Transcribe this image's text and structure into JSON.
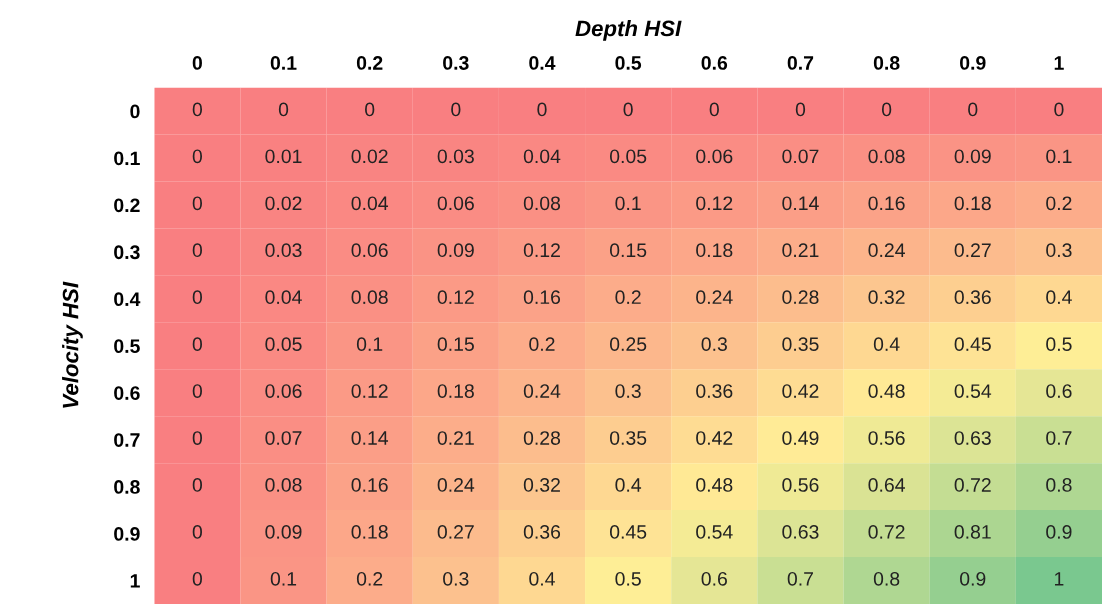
{
  "chart_data": {
    "type": "heatmap",
    "xlabel": "Depth HSI",
    "ylabel": "Velocity HSI",
    "categories": [
      "0",
      "0.1",
      "0.2",
      "0.3",
      "0.4",
      "0.5",
      "0.6",
      "0.7",
      "0.8",
      "0.9",
      "1"
    ],
    "y_categories": [
      "0",
      "0.1",
      "0.2",
      "0.3",
      "0.4",
      "0.5",
      "0.6",
      "0.7",
      "0.8",
      "0.9",
      "1"
    ],
    "colors": [
      "#f8696b",
      "#ffeb84",
      "#63be7b"
    ],
    "data_labels": true,
    "cells": [
      [
        0,
        0,
        0,
        0,
        0,
        0,
        0,
        0,
        0,
        0,
        0
      ],
      [
        0,
        0.01,
        0.02,
        0.03,
        0.04,
        0.05,
        0.06,
        0.07,
        0.08,
        0.09,
        0.1
      ],
      [
        0,
        0.02,
        0.04,
        0.06,
        0.08,
        0.1,
        0.12,
        0.14,
        0.16,
        0.18,
        0.2
      ],
      [
        0,
        0.03,
        0.06,
        0.09,
        0.12,
        0.15,
        0.18,
        0.21,
        0.24,
        0.27,
        0.3
      ],
      [
        0,
        0.04,
        0.08,
        0.12,
        0.16,
        0.2,
        0.24,
        0.28,
        0.32,
        0.36,
        0.4
      ],
      [
        0,
        0.05,
        0.1,
        0.15,
        0.2,
        0.25,
        0.3,
        0.35,
        0.4,
        0.45,
        0.5
      ],
      [
        0,
        0.06,
        0.12,
        0.18,
        0.24,
        0.3,
        0.36,
        0.42,
        0.48,
        0.54,
        0.6
      ],
      [
        0,
        0.07,
        0.14,
        0.21,
        0.28,
        0.35,
        0.42,
        0.49,
        0.56,
        0.63,
        0.7
      ],
      [
        0,
        0.08,
        0.16,
        0.24,
        0.32,
        0.4,
        0.48,
        0.56,
        0.64,
        0.72,
        0.8
      ],
      [
        0,
        0.09,
        0.18,
        0.27,
        0.36,
        0.45,
        0.54,
        0.63,
        0.72,
        0.81,
        0.9
      ],
      [
        0,
        0.1,
        0.2,
        0.3,
        0.4,
        0.5,
        0.6,
        0.7,
        0.8,
        0.9,
        1
      ]
    ]
  }
}
